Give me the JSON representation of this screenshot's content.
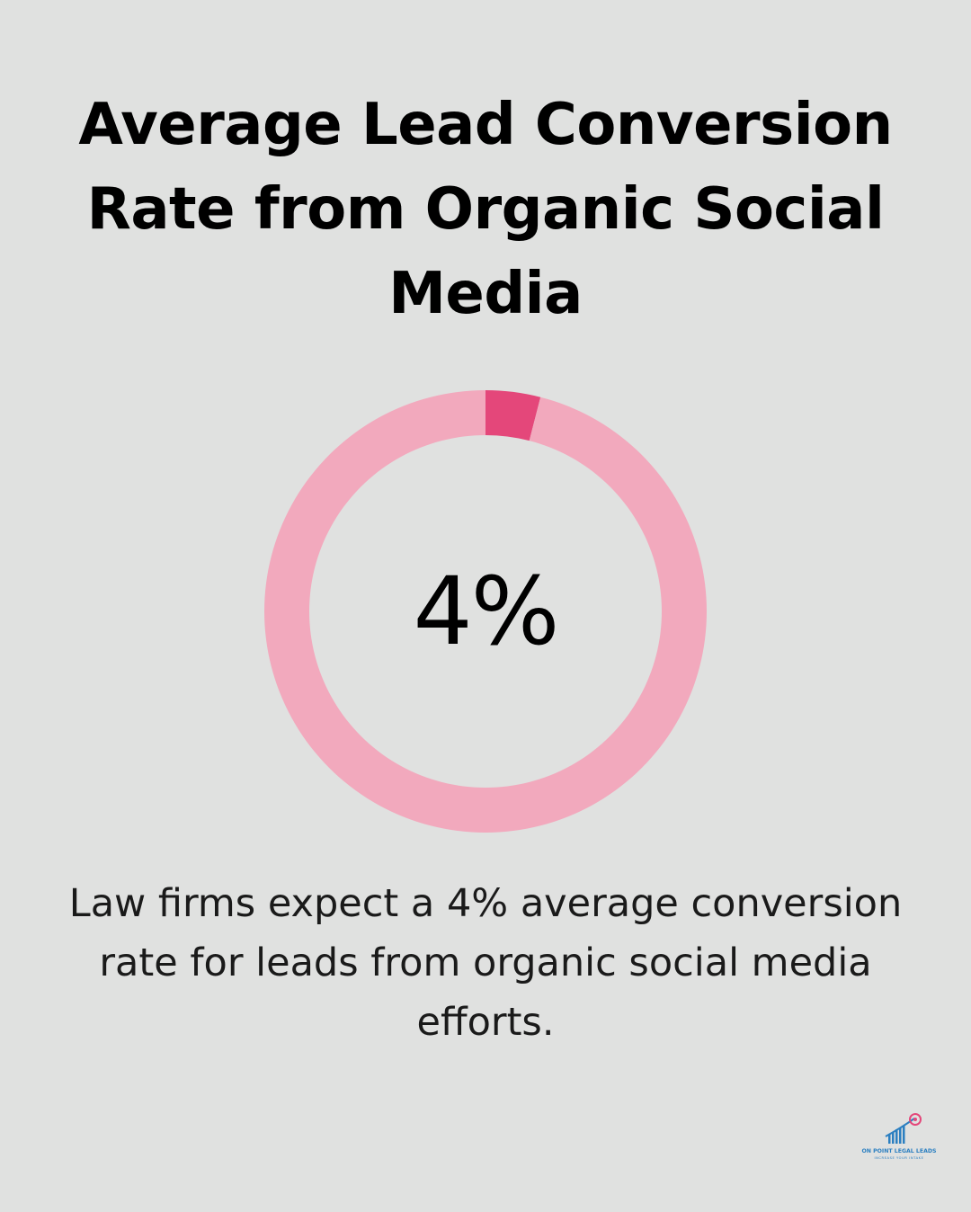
{
  "title": "Average Lead Conversion Rate from Organic Social Media",
  "center_value": "4%",
  "description": "Law firms expect a 4% average conversion rate for leads from organic social media efforts.",
  "logo": {
    "text": "ON POINT LEGAL LEADS",
    "tagline": "INCREASE YOUR INTAKE"
  },
  "colors": {
    "background": "#e0e1e0",
    "ring_remainder": "#f2a9bd",
    "ring_value": "#e4477a",
    "text": "#000000"
  },
  "chart_data": {
    "type": "pie",
    "donut": true,
    "values": [
      4,
      96
    ],
    "categories": [
      "",
      ""
    ],
    "colors": [
      "#e4477a",
      "#f2a9bd"
    ]
  }
}
